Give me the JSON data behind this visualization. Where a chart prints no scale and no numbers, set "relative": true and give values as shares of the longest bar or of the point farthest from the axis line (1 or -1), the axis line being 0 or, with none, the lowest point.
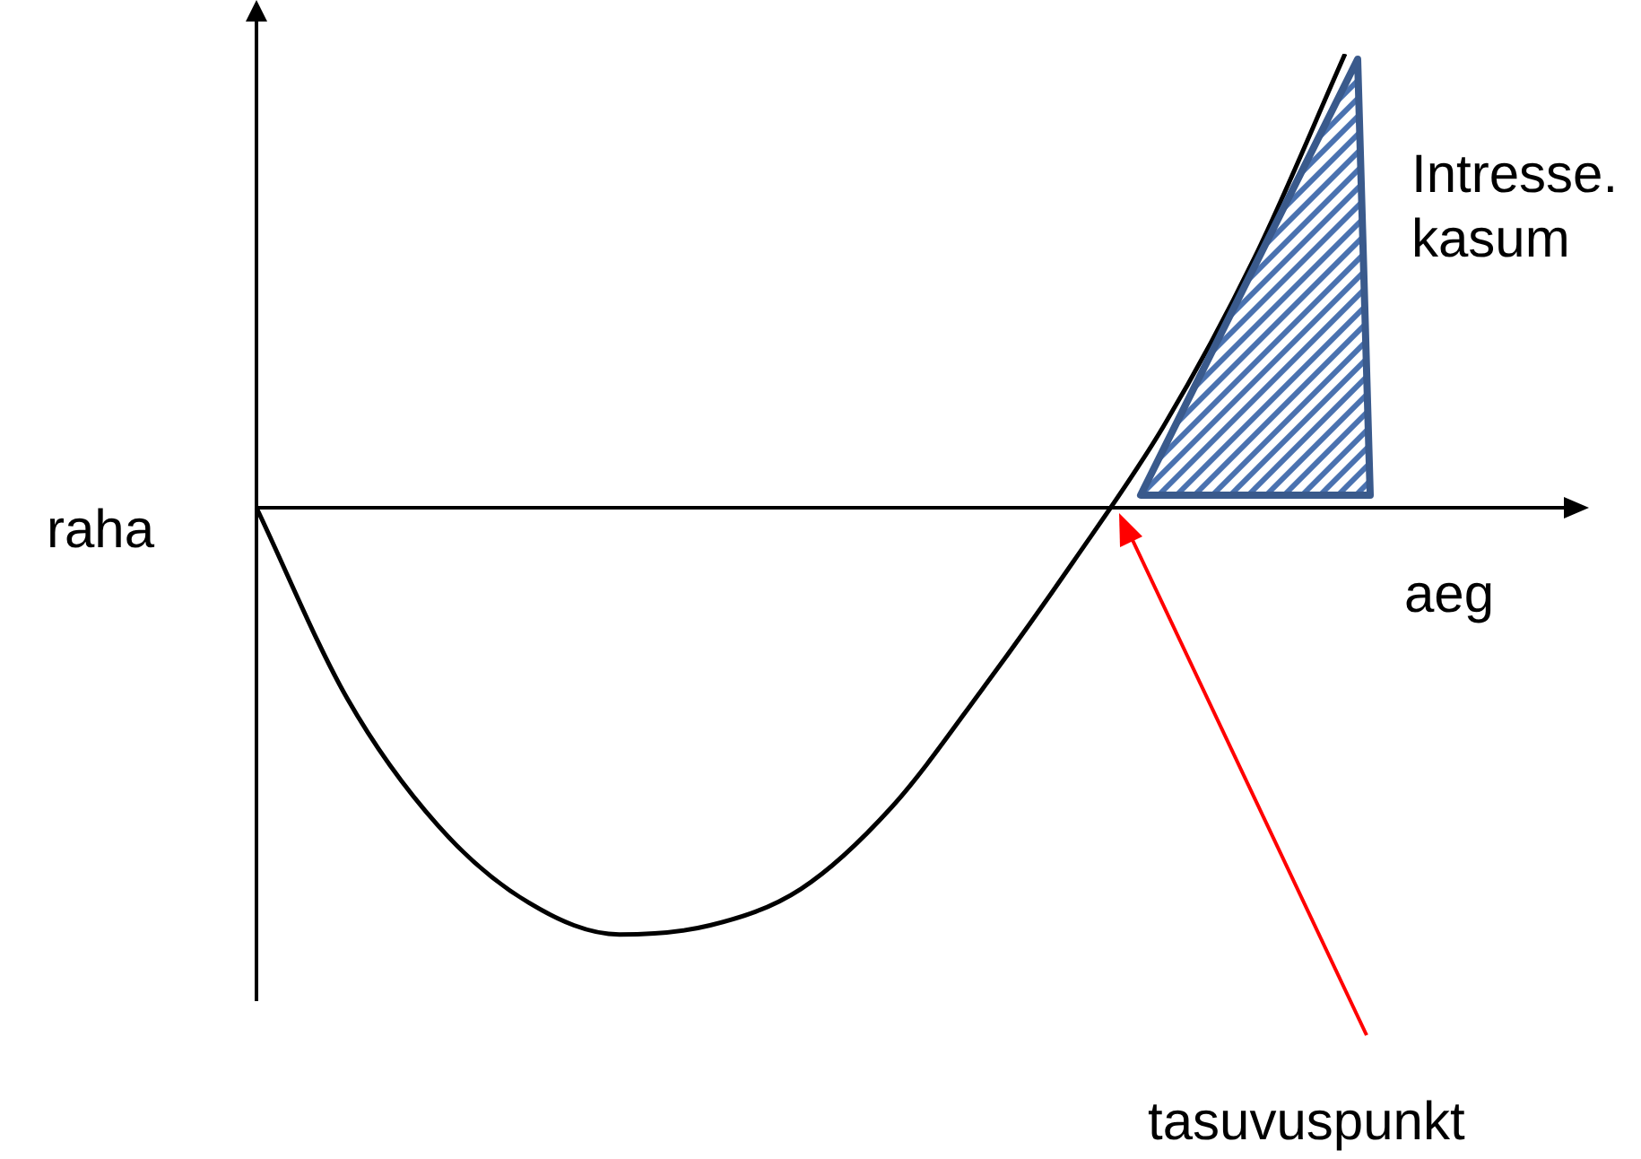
{
  "chart_data": {
    "type": "line",
    "relative": true,
    "xlabel": "aeg",
    "ylabel": "raha",
    "categories": [
      null,
      null,
      null,
      null,
      null,
      null,
      null,
      null,
      null,
      null,
      null,
      null,
      null
    ],
    "series": [
      {
        "color": "#000000",
        "values": [
          0,
          -0.42,
          -0.7,
          -0.87,
          -0.94,
          -0.92,
          -0.84,
          -0.66,
          -0.4,
          -0.12,
          0.18,
          0.55,
          1.0
        ]
      }
    ],
    "annotations": [
      "Intresse. kasum",
      "tasuvuspunkt"
    ],
    "marker": "none",
    "line_style": "solid",
    "grid": false,
    "legend": false
  }
}
